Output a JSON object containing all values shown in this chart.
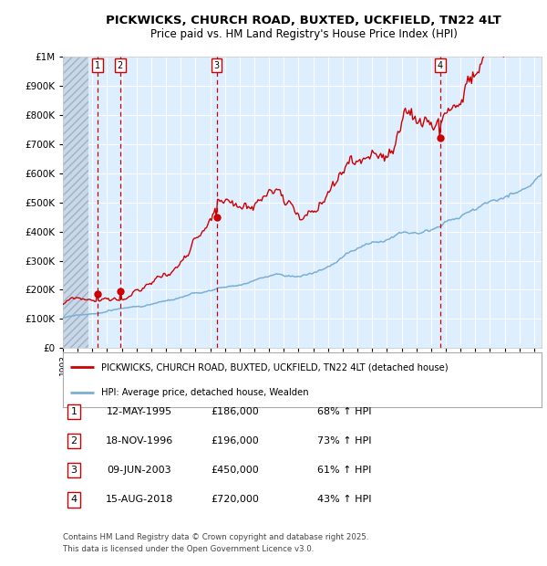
{
  "title": "PICKWICKS, CHURCH ROAD, BUXTED, UCKFIELD, TN22 4LT",
  "subtitle": "Price paid vs. HM Land Registry's House Price Index (HPI)",
  "legend_red": "PICKWICKS, CHURCH ROAD, BUXTED, UCKFIELD, TN22 4LT (detached house)",
  "legend_blue": "HPI: Average price, detached house, Wealden",
  "footer1": "Contains HM Land Registry data © Crown copyright and database right 2025.",
  "footer2": "This data is licensed under the Open Government Licence v3.0.",
  "transactions": [
    {
      "num": 1,
      "date": "12-MAY-1995",
      "price": 186000,
      "pct": "68%",
      "dir": "↑",
      "xval": 1995.36
    },
    {
      "num": 2,
      "date": "18-NOV-1996",
      "price": 196000,
      "pct": "73%",
      "dir": "↑",
      "xval": 1996.88
    },
    {
      "num": 3,
      "date": "09-JUN-2003",
      "price": 450000,
      "pct": "61%",
      "dir": "↑",
      "xval": 2003.44
    },
    {
      "num": 4,
      "date": "15-AUG-2018",
      "price": 720000,
      "pct": "43%",
      "dir": "↑",
      "xval": 2018.62
    }
  ],
  "ylim": [
    0,
    1000000
  ],
  "xlim_start": 1993.0,
  "xlim_end": 2025.5,
  "plot_bg": "#ddeeff",
  "hatch_color": "#b8c8dc",
  "grid_color": "#ffffff",
  "red_line_color": "#cc0000",
  "blue_line_color": "#7aafd4",
  "dashed_line_color": "#cc0000",
  "transaction_box_color": "#cc0000",
  "transaction_box_fill": "#ffffff"
}
